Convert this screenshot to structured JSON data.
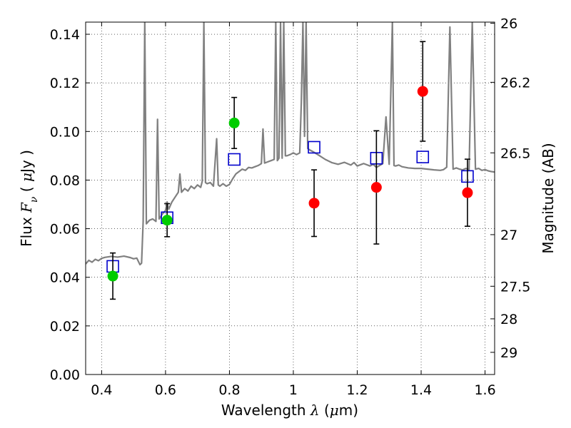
{
  "chart_data": {
    "type": "scatter",
    "title": "",
    "xlabel_parts": [
      "Wavelength ",
      "λ",
      " (",
      "μ",
      "m)"
    ],
    "ylabel_parts": [
      "Flux  ",
      "F",
      "ν",
      "  ( ",
      "μ",
      "Jy )"
    ],
    "y2label": "Magnitude (AB)",
    "xlim": [
      0.35,
      1.63
    ],
    "ylim": [
      0.0,
      0.145
    ],
    "grid": true,
    "x_ticks": [
      {
        "value": 0.4,
        "label": "0.4"
      },
      {
        "value": 0.6,
        "label": "0.6"
      },
      {
        "value": 0.8,
        "label": "0.8"
      },
      {
        "value": 1.0,
        "label": "1"
      },
      {
        "value": 1.2,
        "label": "1.2"
      },
      {
        "value": 1.4,
        "label": "1.4"
      },
      {
        "value": 1.6,
        "label": "1.6"
      }
    ],
    "y_ticks": [
      {
        "value": 0.0,
        "label": "0.00"
      },
      {
        "value": 0.02,
        "label": "0.02"
      },
      {
        "value": 0.04,
        "label": "0.04"
      },
      {
        "value": 0.06,
        "label": "0.06"
      },
      {
        "value": 0.08,
        "label": "0.08"
      },
      {
        "value": 0.1,
        "label": "0.10"
      },
      {
        "value": 0.12,
        "label": "0.12"
      },
      {
        "value": 0.14,
        "label": "0.14"
      }
    ],
    "y2_ticks": [
      {
        "mag": 26,
        "label": "26"
      },
      {
        "mag": 26.2,
        "label": "26.2"
      },
      {
        "mag": 26.5,
        "label": "26.5"
      },
      {
        "mag": 27,
        "label": "27"
      },
      {
        "mag": 27.5,
        "label": "27.5"
      },
      {
        "mag": 28,
        "label": "28"
      },
      {
        "mag": 29,
        "label": "29"
      }
    ],
    "series": [
      {
        "kind": "line",
        "color": "#808080",
        "points": [
          [
            0.35,
            0.0455
          ],
          [
            0.36,
            0.047
          ],
          [
            0.37,
            0.0462
          ],
          [
            0.38,
            0.0474
          ],
          [
            0.39,
            0.0468
          ],
          [
            0.4,
            0.0478
          ],
          [
            0.41,
            0.0482
          ],
          [
            0.43,
            0.0486
          ],
          [
            0.45,
            0.0483
          ],
          [
            0.47,
            0.0487
          ],
          [
            0.49,
            0.0481
          ],
          [
            0.5,
            0.0476
          ],
          [
            0.51,
            0.0479
          ],
          [
            0.52,
            0.0452
          ],
          [
            0.525,
            0.0458
          ],
          [
            0.53,
            0.063
          ],
          [
            0.535,
            0.145
          ],
          [
            0.54,
            0.062
          ],
          [
            0.55,
            0.0635
          ],
          [
            0.56,
            0.064
          ],
          [
            0.57,
            0.063
          ],
          [
            0.575,
            0.105
          ],
          [
            0.58,
            0.064
          ],
          [
            0.59,
            0.066
          ],
          [
            0.6,
            0.0675
          ],
          [
            0.605,
            0.071
          ],
          [
            0.61,
            0.068
          ],
          [
            0.62,
            0.071
          ],
          [
            0.63,
            0.073
          ],
          [
            0.64,
            0.075
          ],
          [
            0.645,
            0.0825
          ],
          [
            0.65,
            0.075
          ],
          [
            0.66,
            0.0765
          ],
          [
            0.67,
            0.0755
          ],
          [
            0.68,
            0.0775
          ],
          [
            0.69,
            0.0765
          ],
          [
            0.7,
            0.078
          ],
          [
            0.71,
            0.077
          ],
          [
            0.715,
            0.0795
          ],
          [
            0.72,
            0.145
          ],
          [
            0.725,
            0.079
          ],
          [
            0.73,
            0.0785
          ],
          [
            0.74,
            0.079
          ],
          [
            0.75,
            0.0775
          ],
          [
            0.76,
            0.097
          ],
          [
            0.765,
            0.078
          ],
          [
            0.77,
            0.0775
          ],
          [
            0.78,
            0.0785
          ],
          [
            0.79,
            0.0775
          ],
          [
            0.8,
            0.0782
          ],
          [
            0.81,
            0.0805
          ],
          [
            0.82,
            0.0825
          ],
          [
            0.83,
            0.0835
          ],
          [
            0.84,
            0.0845
          ],
          [
            0.85,
            0.084
          ],
          [
            0.86,
            0.0852
          ],
          [
            0.87,
            0.085
          ],
          [
            0.88,
            0.0855
          ],
          [
            0.89,
            0.086
          ],
          [
            0.9,
            0.0868
          ],
          [
            0.905,
            0.101
          ],
          [
            0.91,
            0.087
          ],
          [
            0.92,
            0.0875
          ],
          [
            0.93,
            0.088
          ],
          [
            0.94,
            0.0885
          ],
          [
            0.945,
            0.145
          ],
          [
            0.95,
            0.088
          ],
          [
            0.955,
            0.089
          ],
          [
            0.96,
            0.145
          ],
          [
            0.965,
            0.089
          ],
          [
            0.97,
            0.145
          ],
          [
            0.975,
            0.09
          ],
          [
            0.98,
            0.09
          ],
          [
            0.99,
            0.0905
          ],
          [
            1.0,
            0.0912
          ],
          [
            1.01,
            0.0905
          ],
          [
            1.02,
            0.0912
          ],
          [
            1.025,
            0.112
          ],
          [
            1.03,
            0.145
          ],
          [
            1.035,
            0.098
          ],
          [
            1.04,
            0.145
          ],
          [
            1.045,
            0.093
          ],
          [
            1.05,
            0.0925
          ],
          [
            1.06,
            0.0918
          ],
          [
            1.08,
            0.0902
          ],
          [
            1.1,
            0.0885
          ],
          [
            1.12,
            0.0872
          ],
          [
            1.14,
            0.0865
          ],
          [
            1.16,
            0.0873
          ],
          [
            1.18,
            0.0862
          ],
          [
            1.19,
            0.0872
          ],
          [
            1.2,
            0.0858
          ],
          [
            1.22,
            0.0868
          ],
          [
            1.24,
            0.0858
          ],
          [
            1.25,
            0.0865
          ],
          [
            1.26,
            0.0852
          ],
          [
            1.28,
            0.0868
          ],
          [
            1.29,
            0.106
          ],
          [
            1.3,
            0.0865
          ],
          [
            1.31,
            0.145
          ],
          [
            1.315,
            0.086
          ],
          [
            1.32,
            0.0858
          ],
          [
            1.33,
            0.0862
          ],
          [
            1.34,
            0.0855
          ],
          [
            1.36,
            0.085
          ],
          [
            1.38,
            0.0848
          ],
          [
            1.4,
            0.0848
          ],
          [
            1.42,
            0.0845
          ],
          [
            1.44,
            0.0842
          ],
          [
            1.46,
            0.084
          ],
          [
            1.47,
            0.0843
          ],
          [
            1.48,
            0.0853
          ],
          [
            1.49,
            0.143
          ],
          [
            1.5,
            0.0845
          ],
          [
            1.51,
            0.085
          ],
          [
            1.52,
            0.0845
          ],
          [
            1.53,
            0.0842
          ],
          [
            1.54,
            0.0848
          ],
          [
            1.55,
            0.0843
          ],
          [
            1.56,
            0.145
          ],
          [
            1.57,
            0.0845
          ],
          [
            1.58,
            0.0848
          ],
          [
            1.59,
            0.084
          ],
          [
            1.6,
            0.0843
          ],
          [
            1.61,
            0.0838
          ],
          [
            1.62,
            0.0835
          ],
          [
            1.63,
            0.0833
          ]
        ]
      },
      {
        "kind": "open-square",
        "color": "#0000cc",
        "points": [
          [
            0.435,
            0.0445
          ],
          [
            0.605,
            0.0645
          ],
          [
            0.815,
            0.0885
          ],
          [
            1.065,
            0.0935
          ],
          [
            1.26,
            0.089
          ],
          [
            1.405,
            0.0895
          ],
          [
            1.545,
            0.0815
          ]
        ]
      },
      {
        "kind": "filled-circle",
        "color": "#00cc00",
        "points": [
          [
            0.435,
            0.0405,
            0.0095
          ],
          [
            0.605,
            0.0635,
            0.0068
          ],
          [
            0.815,
            0.1035,
            0.0105
          ]
        ]
      },
      {
        "kind": "filled-circle",
        "color": "#ff0000",
        "points": [
          [
            1.065,
            0.0705,
            0.0137
          ],
          [
            1.26,
            0.077,
            0.0233
          ],
          [
            1.405,
            0.1165,
            0.0205
          ],
          [
            1.545,
            0.0748,
            0.0138
          ]
        ]
      }
    ]
  }
}
